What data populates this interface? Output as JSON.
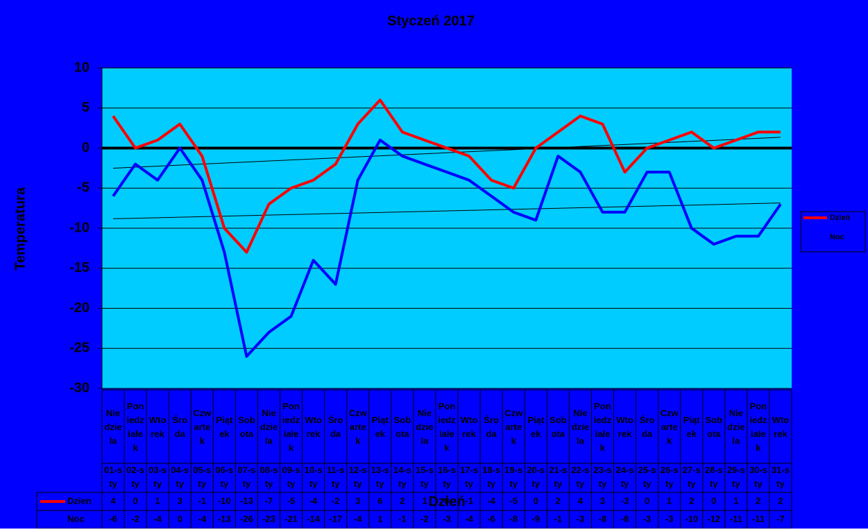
{
  "chart_data": {
    "type": "line",
    "title": "Styczeń 2017",
    "y_label": "Temperatura",
    "x_label": "Dzień",
    "weekdays": [
      "Niedziela",
      "Poniedziałek",
      "Wtorek",
      "Środa",
      "Czwartek",
      "Piątek",
      "Sobota",
      "Niedziela",
      "Poniedziałek",
      "Wtorek",
      "Środa",
      "Czwartek",
      "Piątek",
      "Sobota",
      "Niedziela",
      "Poniedziałek",
      "Wtorek",
      "Środa",
      "Czwartek",
      "Piątek",
      "Sobota",
      "Niedziela",
      "Poniedziałek",
      "Wtorek",
      "Środa",
      "Czwartek",
      "Piątek",
      "Sobota",
      "Niedziela",
      "Poniedziałek",
      "Wtorek"
    ],
    "categories": [
      "01-sty",
      "02-sty",
      "03-sty",
      "04-sty",
      "05-sty",
      "06-sty",
      "07-sty",
      "08-sty",
      "09-sty",
      "10-sty",
      "11-sty",
      "12-sty",
      "13-sty",
      "14-sty",
      "15-sty",
      "16-sty",
      "17-sty",
      "18-sty",
      "19-sty",
      "20-sty",
      "21-sty",
      "22-sty",
      "23-sty",
      "24-sty",
      "25-sty",
      "26-sty",
      "27-sty",
      "28-sty",
      "29-sty",
      "30-sty",
      "31-sty"
    ],
    "series": [
      {
        "name": "Dzień",
        "table_label": "Dzien",
        "color": "#ff0000",
        "values": [
          4,
          0,
          1,
          3,
          -1,
          -10,
          -13,
          -7,
          -5,
          -4,
          -2,
          3,
          6,
          2,
          1,
          0,
          -1,
          -4,
          -5,
          0,
          2,
          4,
          3,
          -3,
          0,
          1,
          2,
          0,
          1,
          2,
          2
        ]
      },
      {
        "name": "Noc",
        "table_label": "Noc",
        "color": "#0000ff",
        "values": [
          -6,
          -2,
          -4,
          0,
          -4,
          -13,
          -26,
          -23,
          -21,
          -14,
          -17,
          -4,
          1,
          -1,
          -2,
          -3,
          -4,
          -6,
          -8,
          -9,
          -1,
          -3,
          -8,
          -8,
          -3,
          -3,
          -10,
          -12,
          -11,
          -11,
          -7
        ]
      }
    ],
    "ylim": [
      -30,
      10
    ],
    "yticks": [
      -30,
      -25,
      -20,
      -15,
      -10,
      -5,
      0,
      5,
      10
    ],
    "grid": true,
    "trendline": true,
    "legend": "right",
    "background": "#0000ff",
    "plot_background": "#00ccff"
  }
}
